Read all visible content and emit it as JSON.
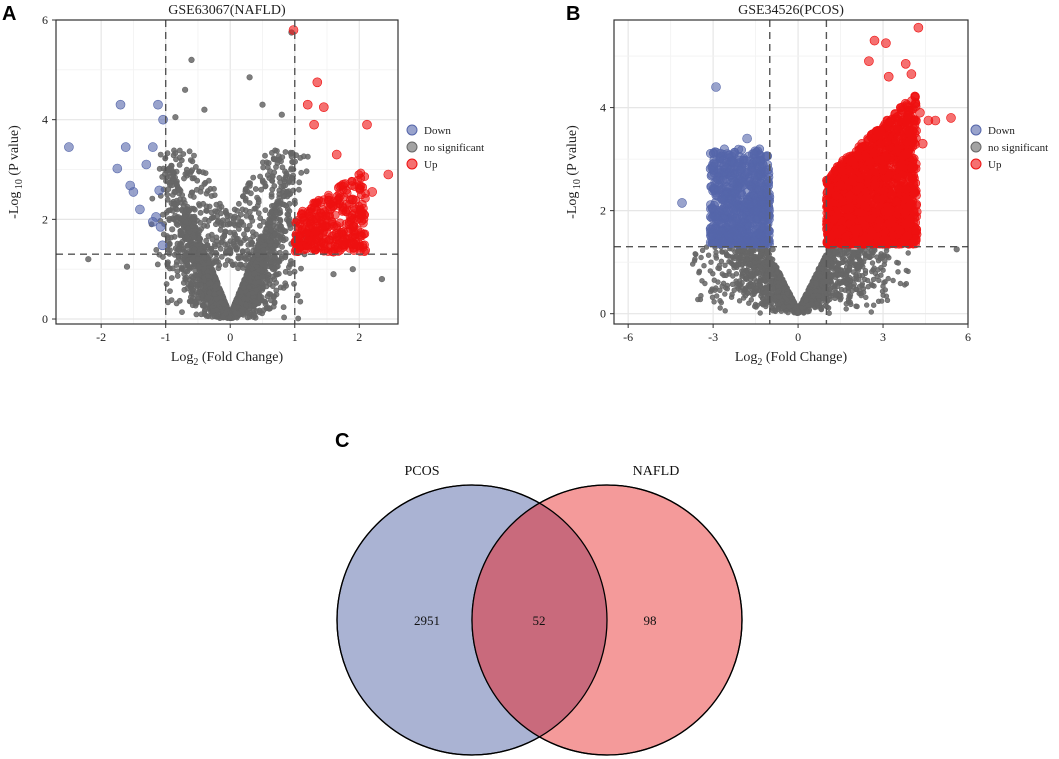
{
  "panels": {
    "a": "A",
    "b": "B",
    "c": "C"
  },
  "colors": {
    "down": "#5566aa",
    "ns": "#666666",
    "up": "#ee1111",
    "venn_pcos": "#aab3d3",
    "venn_nafld": "#f49a9a",
    "venn_overlap": "#c96a7c"
  },
  "chart_data": [
    {
      "type": "scatter",
      "title": "GSE63067(NAFLD)",
      "xlabel_main": "Log",
      "xlabel_sub": "2",
      "xlabel_rest": " (Fold Change)",
      "ylabel_main": "-Log",
      "ylabel_sub": " 10",
      "ylabel_rest": " (P value)",
      "xlim": [
        -2.7,
        2.6
      ],
      "ylim": [
        -0.1,
        6.0
      ],
      "xticks": [
        -2,
        -1,
        0,
        1,
        2
      ],
      "yticks": [
        0,
        2,
        4,
        6
      ],
      "x_threshold": [
        -1,
        1
      ],
      "y_threshold": 1.3,
      "legend": [
        {
          "label": "Down",
          "group": "down"
        },
        {
          "label": "no significant",
          "group": "ns"
        },
        {
          "label": "Up",
          "group": "up"
        }
      ],
      "down_points": [
        [
          -2.5,
          3.45
        ],
        [
          -1.75,
          3.02
        ],
        [
          -1.7,
          4.3
        ],
        [
          -1.62,
          3.45
        ],
        [
          -1.55,
          2.68
        ],
        [
          -1.5,
          2.55
        ],
        [
          -1.3,
          3.1
        ],
        [
          -1.2,
          3.45
        ],
        [
          -1.4,
          2.2
        ],
        [
          -1.15,
          2.05
        ],
        [
          -1.1,
          2.58
        ],
        [
          -1.08,
          1.85
        ],
        [
          -1.05,
          1.48
        ],
        [
          -1.2,
          1.95
        ],
        [
          -1.04,
          4.0
        ],
        [
          -1.12,
          4.3
        ]
      ],
      "up_points": [
        [
          0.98,
          5.8
        ],
        [
          1.2,
          4.3
        ],
        [
          1.35,
          4.75
        ],
        [
          1.45,
          4.25
        ],
        [
          1.3,
          3.9
        ],
        [
          1.65,
          3.3
        ],
        [
          2.12,
          3.9
        ],
        [
          2.45,
          2.9
        ],
        [
          2.2,
          2.55
        ],
        [
          1.9,
          2.4
        ],
        [
          1.75,
          2.7
        ],
        [
          1.55,
          2.2
        ],
        [
          1.6,
          1.35
        ],
        [
          2.0,
          2.1
        ],
        [
          1.8,
          1.9
        ],
        [
          1.4,
          2.35
        ],
        [
          1.25,
          1.9
        ]
      ],
      "up_cloud": {
        "xmin": 1.0,
        "xmax": 2.1,
        "ymin": 1.35,
        "ymax": 3.0,
        "n": 320
      },
      "ns_cloud": {
        "xspread": 0.95,
        "ymax": 3.3,
        "n": 2200
      },
      "ns_outliers": [
        [
          -0.6,
          5.2
        ],
        [
          -0.7,
          4.6
        ],
        [
          -0.4,
          4.2
        ],
        [
          0.5,
          4.3
        ],
        [
          0.3,
          4.85
        ],
        [
          0.95,
          5.75
        ],
        [
          -0.9,
          1.8
        ],
        [
          -2.2,
          1.2
        ],
        [
          -1.6,
          1.05
        ],
        [
          1.9,
          1.0
        ],
        [
          2.35,
          0.8
        ],
        [
          1.6,
          0.9
        ],
        [
          -0.85,
          4.05
        ],
        [
          0.8,
          4.1
        ]
      ]
    },
    {
      "type": "scatter",
      "title": "GSE34526(PCOS)",
      "xlabel_main": "Log",
      "xlabel_sub": "2",
      "xlabel_rest": " (Fold Change)",
      "ylabel_main": "-Log",
      "ylabel_sub": " 10",
      "ylabel_rest": " (P value)",
      "xlim": [
        -6.5,
        6.0
      ],
      "ylim": [
        -0.2,
        5.7
      ],
      "xticks": [
        -6,
        -3,
        0,
        3,
        6
      ],
      "yticks": [
        0,
        2,
        4
      ],
      "x_threshold": [
        -1,
        1
      ],
      "y_threshold": 1.3,
      "legend": [
        {
          "label": "Down",
          "group": "down"
        },
        {
          "label": "no significant",
          "group": "ns"
        },
        {
          "label": "Up",
          "group": "up"
        }
      ],
      "down_points": [
        [
          -2.9,
          4.4
        ],
        [
          -4.1,
          2.15
        ],
        [
          -1.8,
          3.4
        ],
        [
          -2.5,
          3.1
        ],
        [
          -3.0,
          2.9
        ],
        [
          -1.6,
          3.1
        ]
      ],
      "down_cloud": {
        "xmin": -3.1,
        "xmax": -1.0,
        "ymin": 1.35,
        "ymax": 3.2,
        "n": 700
      },
      "up_points": [
        [
          2.7,
          5.3
        ],
        [
          3.1,
          5.25
        ],
        [
          4.25,
          5.55
        ],
        [
          2.5,
          4.9
        ],
        [
          3.8,
          4.85
        ],
        [
          4.0,
          4.65
        ],
        [
          3.2,
          4.6
        ],
        [
          4.6,
          3.75
        ],
        [
          4.85,
          3.75
        ],
        [
          5.4,
          3.8
        ],
        [
          4.3,
          3.9
        ],
        [
          4.4,
          3.3
        ],
        [
          3.5,
          3.2
        ]
      ],
      "up_cloud": {
        "xmin": 1.0,
        "xmax": 4.2,
        "ymin": 1.35,
        "ymax": 4.3,
        "n": 1900
      },
      "ns_cloud": {
        "xspread": 3.0,
        "ymax": 1.3,
        "n": 1700
      },
      "ns_outliers": [
        [
          5.6,
          1.25
        ],
        [
          -0.9,
          1.25
        ]
      ]
    }
  ],
  "venn": {
    "sets": [
      {
        "name": "PCOS",
        "only": 2951
      },
      {
        "name": "NAFLD",
        "only": 98
      }
    ],
    "overlap": 52
  }
}
